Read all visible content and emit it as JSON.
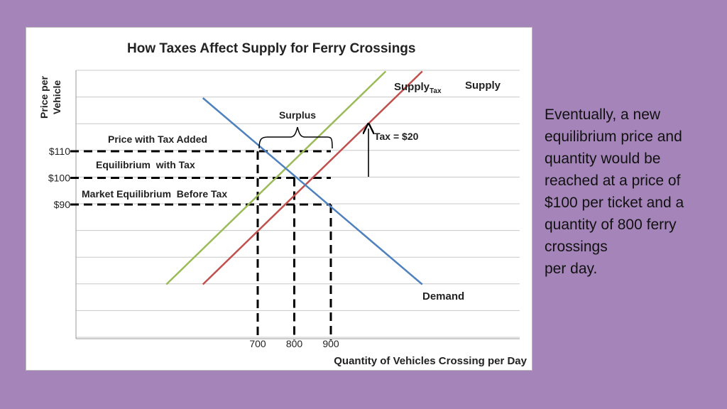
{
  "chart_data": {
    "type": "line",
    "title": "How Taxes Affect Supply for Ferry Crossings",
    "ylabel_lines": [
      "Price per",
      "Vehicle"
    ],
    "xlabel": "Quantity of Vehicles Crossing per Day",
    "x_ticks": [
      "700",
      "800",
      "900"
    ],
    "y_ticks": [
      "$110",
      "$100",
      "$90"
    ],
    "grid": true,
    "series": [
      {
        "name": "Supply",
        "color": "#c0504d",
        "x": [
          550,
          1150
        ],
        "y": [
          60,
          140
        ]
      },
      {
        "name": "Supply",
        "subscript": "Tax",
        "color": "#9bbb59",
        "x": [
          450,
          1050
        ],
        "y": [
          60,
          140
        ]
      },
      {
        "name": "Demand",
        "color": "#4f81bd",
        "x": [
          550,
          1150
        ],
        "y": [
          130,
          60
        ]
      }
    ],
    "annotations": {
      "price_with_tax": "Price with Tax Added",
      "equilibrium_with_tax": "Equilibrium  with Tax",
      "market_equilibrium": "Market Equilibrium  Before Tax",
      "surplus": "Surplus",
      "tax": "Tax = $20"
    },
    "dashed_guides": [
      {
        "price": 110,
        "quantity": 700
      },
      {
        "price": 100,
        "quantity": 800
      },
      {
        "price": 90,
        "quantity": 900
      }
    ]
  },
  "side_text": [
    "Eventually, a new",
    "equilibrium price and",
    "quantity would be",
    "reached at a price of",
    "$100 per ticket and a",
    "quantity of 800 ferry",
    "crossings",
    "per day."
  ],
  "colors": {
    "background": "#a585b9",
    "dashed": "#000000",
    "gridline": "#c8c8c8"
  }
}
